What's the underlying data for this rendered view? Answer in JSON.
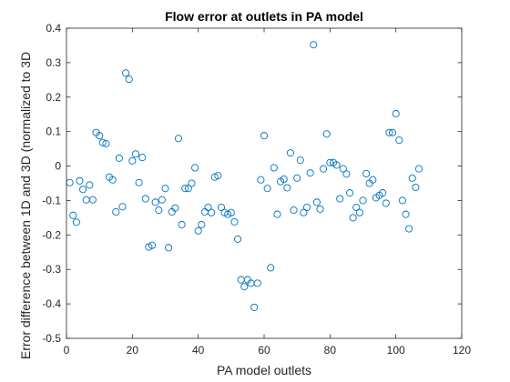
{
  "chart_data": {
    "type": "scatter",
    "title": "Flow error at outlets in PA model",
    "xlabel": "PA model outlets",
    "ylabel": "Error difference between 1D and 3D (normalized to 3D",
    "xlim": [
      0,
      120
    ],
    "ylim": [
      -0.5,
      0.4
    ],
    "xticks": [
      0,
      20,
      40,
      60,
      80,
      100,
      120
    ],
    "yticks": [
      -0.5,
      -0.4,
      -0.3,
      -0.2,
      -0.1,
      0,
      0.1,
      0.2,
      0.3,
      0.4
    ],
    "xtick_labels": [
      "0",
      "20",
      "40",
      "60",
      "80",
      "100",
      "120"
    ],
    "ytick_labels": [
      "-0.5",
      "-0.4",
      "-0.3",
      "-0.2",
      "-0.1",
      "0",
      "0.1",
      "0.2",
      "0.3",
      "0.4"
    ],
    "grid": false,
    "box": true,
    "marker": "circle-open",
    "color": "#0072BD",
    "x": [
      1,
      2,
      3,
      4,
      5,
      6,
      7,
      8,
      9,
      10,
      11,
      12,
      13,
      14,
      15,
      16,
      17,
      18,
      19,
      20,
      21,
      22,
      23,
      24,
      25,
      26,
      27,
      28,
      29,
      30,
      31,
      32,
      33,
      34,
      35,
      36,
      37,
      38,
      39,
      40,
      41,
      42,
      43,
      44,
      45,
      46,
      47,
      48,
      49,
      50,
      51,
      52,
      53,
      54,
      55,
      56,
      57,
      58,
      59,
      60,
      61,
      62,
      63,
      64,
      65,
      66,
      67,
      68,
      69,
      70,
      71,
      72,
      73,
      74,
      75,
      76,
      77,
      78,
      79,
      80,
      81,
      82,
      83,
      84,
      85,
      86,
      87,
      88,
      89,
      90,
      91,
      92,
      93,
      94,
      95,
      96,
      97,
      98,
      99,
      100,
      101,
      102,
      103,
      104,
      105,
      106,
      107
    ],
    "y": [
      -0.048,
      -0.143,
      -0.163,
      -0.043,
      -0.068,
      -0.098,
      -0.055,
      -0.098,
      0.097,
      0.088,
      0.068,
      0.065,
      -0.032,
      -0.04,
      -0.133,
      0.023,
      -0.118,
      0.27,
      0.252,
      0.015,
      0.035,
      -0.048,
      0.025,
      -0.095,
      -0.235,
      -0.23,
      -0.105,
      -0.128,
      -0.098,
      -0.065,
      -0.237,
      -0.133,
      -0.122,
      0.08,
      -0.17,
      -0.065,
      -0.065,
      -0.05,
      -0.005,
      -0.188,
      -0.17,
      -0.133,
      -0.12,
      -0.135,
      -0.032,
      -0.028,
      -0.12,
      -0.135,
      -0.14,
      -0.135,
      -0.162,
      -0.212,
      -0.33,
      -0.35,
      -0.33,
      -0.34,
      -0.41,
      -0.34,
      -0.04,
      0.088,
      -0.065,
      -0.295,
      -0.005,
      -0.14,
      -0.045,
      -0.038,
      -0.063,
      0.038,
      -0.128,
      -0.035,
      0.017,
      -0.135,
      -0.12,
      -0.02,
      0.352,
      -0.105,
      -0.125,
      -0.008,
      0.093,
      0.01,
      0.01,
      0.003,
      -0.095,
      -0.008,
      -0.023,
      -0.078,
      -0.15,
      -0.12,
      -0.135,
      -0.1,
      -0.022,
      -0.05,
      -0.04,
      -0.092,
      -0.085,
      -0.078,
      -0.108,
      0.097,
      0.097,
      0.152,
      0.075,
      -0.1,
      -0.14,
      -0.182,
      -0.035,
      -0.062,
      -0.008
    ]
  }
}
